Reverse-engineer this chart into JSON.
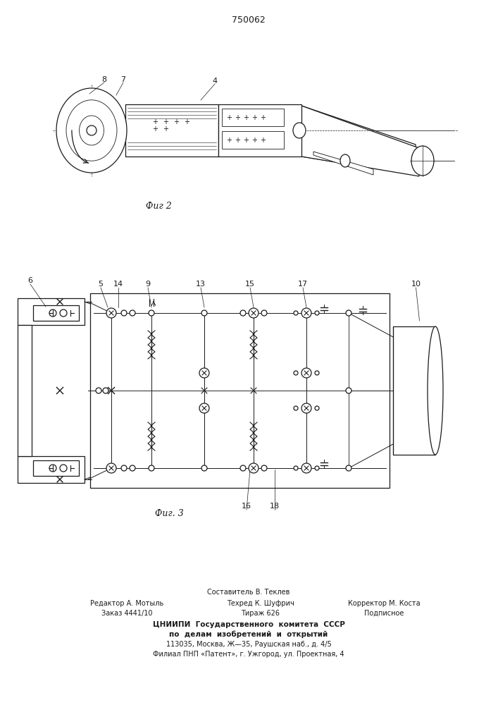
{
  "patent_number": "750062",
  "fig2_label": "Фиг 2",
  "fig3_label": "Фиг. 3",
  "footer_line1": "Составитель В. Теклев",
  "footer_line2_left": "Редактор А. Мотыль",
  "footer_line2_mid": "Техред К. Шуфрич",
  "footer_line2_right": "Корректор М. Коста",
  "footer_line3_left": "Заказ 4441/10",
  "footer_line3_mid": "Тираж 626",
  "footer_line3_right": "Подписное",
  "footer_line4": "ЦНИИПИ  Государственного  комитета  СССР",
  "footer_line5": "по  делам  изобретений  и  открытий",
  "footer_line6": "113035, Москва, Ж—35, Раушская наб., д. 4/5",
  "footer_line7": "Филиал ПНП «Патент», г. Ужгород, ул. Проектная, 4",
  "bg_color": "#ffffff",
  "line_color": "#1a1a1a"
}
